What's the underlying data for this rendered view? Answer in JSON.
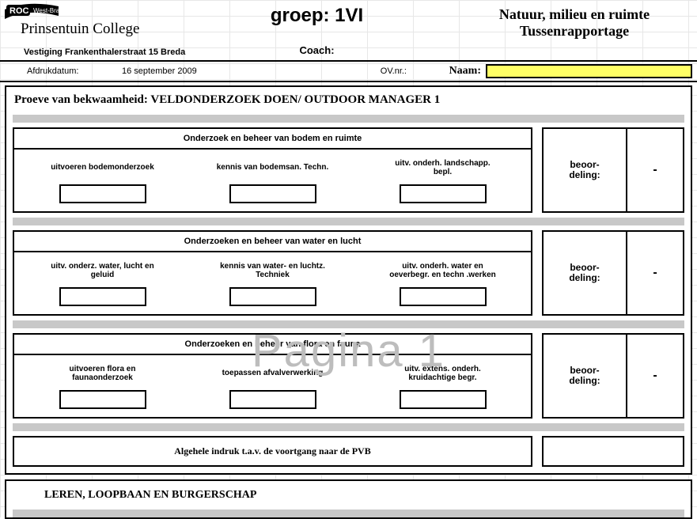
{
  "logo": {
    "roc_text": "ROC",
    "roc_sub": "West-Brabant",
    "college": "Prinsentuin College"
  },
  "header": {
    "group_label": "groep:",
    "group_value": "1VI",
    "coach_label": "Coach:",
    "title_line1": "Natuur, milieu en ruimte",
    "title_line2": "Tussenrapportage",
    "address": "Vestiging Frankenthalerstraat 15 Breda"
  },
  "meta": {
    "afdruk_label": "Afdrukdatum:",
    "afdruk_value": "16 september 2009",
    "ov_label": "OV.nr.:",
    "naam_label": "Naam:"
  },
  "main": {
    "title": "Proeve van bekwaamheid: VELDONDERZOEK DOEN/ OUTDOOR MANAGER 1",
    "blocks": [
      {
        "title": "Onderzoek en beheer van bodem en ruimte",
        "cols": [
          "uitvoeren bodemonderzoek",
          "kennis van bodemsan. Techn.",
          "uitv. onderh. landschapp. bepl."
        ],
        "beoor_label": "beoor-\ndeling:",
        "beoor_value": "-"
      },
      {
        "title": "Onderzoeken en beheer van water en lucht",
        "cols": [
          "uitv. onderz. water, lucht en geluid",
          "kennis van water- en luchtz. Techniek",
          "uitv. onderh. water en oeverbegr. en techn .werken"
        ],
        "beoor_label": "beoor-\ndeling:",
        "beoor_value": "-"
      },
      {
        "title": "Onderzoeken en beheer van flora en fauna",
        "cols": [
          "uitvoeren flora en faunaonderzoek",
          "toepassen afvalverwerking",
          "uitv. extens. onderh. kruidachtige begr."
        ],
        "beoor_label": "beoor-\ndeling:",
        "beoor_value": "-"
      }
    ],
    "overall": "Algehele indruk t.a.v. de voortgang naar de PVB"
  },
  "sub": {
    "title": "LEREN, LOOPBAAN EN BURGERSCHAP"
  },
  "watermark": "Pagina 1",
  "colors": {
    "highlight": "#ffff66",
    "grey": "#c8c8c8",
    "grid": "#d8d8d8",
    "watermark": "#bdbdbd"
  }
}
